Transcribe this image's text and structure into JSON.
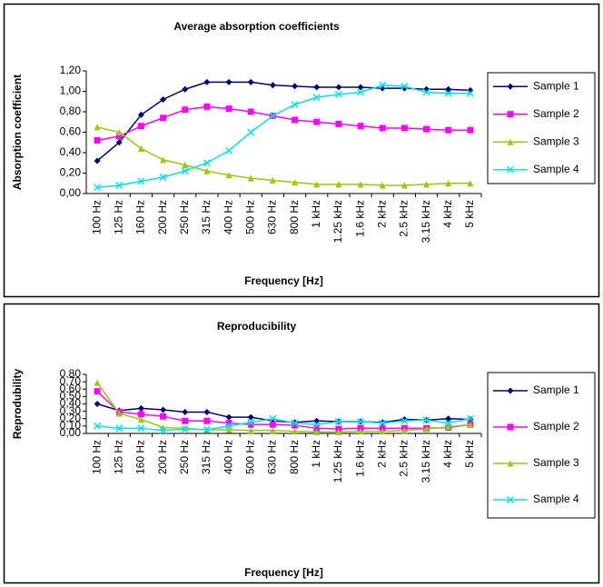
{
  "chart_data": [
    {
      "type": "line",
      "title": "Average absorption coefficients",
      "x_label": "Frequency [Hz]",
      "y_label": "Absorption coefficient",
      "categories": [
        "100 Hz",
        "125 Hz",
        "160 Hz",
        "200 Hz",
        "250 Hz",
        "315 Hz",
        "400 Hz",
        "500 Hz",
        "630 Hz",
        "800 Hz",
        "1 kHz",
        "1.25 kHz",
        "1.6 kHz",
        "2 kHz",
        "2.5 kHz",
        "3.15 kHz",
        "4 kHz",
        "5 kHz"
      ],
      "series": [
        {
          "name": "Sample 1",
          "color": "#000080",
          "marker": "diamond",
          "values": [
            0.32,
            0.5,
            0.77,
            0.92,
            1.02,
            1.09,
            1.09,
            1.09,
            1.06,
            1.05,
            1.04,
            1.04,
            1.04,
            1.03,
            1.03,
            1.02,
            1.02,
            1.01
          ]
        },
        {
          "name": "Sample 2",
          "color": "#ff00ff",
          "marker": "square",
          "values": [
            0.52,
            0.56,
            0.66,
            0.74,
            0.82,
            0.85,
            0.83,
            0.8,
            0.76,
            0.72,
            0.7,
            0.68,
            0.66,
            0.64,
            0.64,
            0.63,
            0.62,
            0.62
          ]
        },
        {
          "name": "Sample 3",
          "color": "#99cc00",
          "marker": "triangle",
          "values": [
            0.65,
            0.6,
            0.44,
            0.33,
            0.28,
            0.22,
            0.18,
            0.15,
            0.13,
            0.11,
            0.09,
            0.09,
            0.09,
            0.08,
            0.08,
            0.09,
            0.1,
            0.1
          ]
        },
        {
          "name": "Sample 4",
          "color": "#00e5ee",
          "marker": "x",
          "values": [
            0.06,
            0.08,
            0.12,
            0.16,
            0.22,
            0.3,
            0.42,
            0.6,
            0.76,
            0.87,
            0.94,
            0.97,
            0.99,
            1.06,
            1.05,
            0.99,
            0.98,
            0.98
          ]
        }
      ],
      "ylim": [
        0,
        1.2
      ],
      "yticks": [
        {
          "value": 0,
          "label": "0,00"
        },
        {
          "value": 0.2,
          "label": "0,20"
        },
        {
          "value": 0.4,
          "label": "0,40"
        },
        {
          "value": 0.6,
          "label": "0,60"
        },
        {
          "value": 0.8,
          "label": "0,80"
        },
        {
          "value": 1.0,
          "label": "1,00"
        },
        {
          "value": 1.2,
          "label": "1,20"
        }
      ],
      "grid": false,
      "legend": "right"
    },
    {
      "type": "line",
      "title": "Reproducibility",
      "x_label": "Frequency [Hz]",
      "y_label": "Reprodubility",
      "categories": [
        "100 Hz",
        "125 Hz",
        "160 Hz",
        "200 Hz",
        "250 Hz",
        "315 Hz",
        "400 Hz",
        "500 Hz",
        "630 Hz",
        "800 Hz",
        "1 kHz",
        "1.25 kHz",
        "1.6 kHz",
        "2 kHz",
        "2.5 kHz",
        "3.15 kHz",
        "4 kHz",
        "5 kHz"
      ],
      "series": [
        {
          "name": "Sample 1",
          "color": "#000080",
          "marker": "diamond",
          "values": [
            0.4,
            0.31,
            0.34,
            0.32,
            0.29,
            0.29,
            0.22,
            0.22,
            0.17,
            0.15,
            0.17,
            0.16,
            0.16,
            0.15,
            0.19,
            0.18,
            0.2,
            0.19
          ]
        },
        {
          "name": "Sample 2",
          "color": "#ff00ff",
          "marker": "square",
          "values": [
            0.57,
            0.29,
            0.26,
            0.23,
            0.17,
            0.17,
            0.14,
            0.12,
            0.12,
            0.11,
            0.07,
            0.06,
            0.07,
            0.07,
            0.07,
            0.07,
            0.08,
            0.12
          ]
        },
        {
          "name": "Sample 3",
          "color": "#99cc00",
          "marker": "triangle",
          "values": [
            0.69,
            0.27,
            0.19,
            0.08,
            0.07,
            0.05,
            0.05,
            0.04,
            0.04,
            0.03,
            0.02,
            0.02,
            0.03,
            0.03,
            0.04,
            0.06,
            0.09,
            0.12
          ]
        },
        {
          "name": "Sample 4",
          "color": "#00e5ee",
          "marker": "x",
          "values": [
            0.1,
            0.07,
            0.07,
            0.04,
            0.06,
            0.05,
            0.1,
            0.15,
            0.2,
            0.14,
            0.12,
            0.16,
            0.16,
            0.14,
            0.17,
            0.18,
            0.14,
            0.2
          ]
        }
      ],
      "ylim": [
        0,
        0.8
      ],
      "yticks": [
        {
          "value": 0,
          "label": "0,00"
        },
        {
          "value": 0.1,
          "label": "0,10"
        },
        {
          "value": 0.2,
          "label": "0,20"
        },
        {
          "value": 0.3,
          "label": "0,30"
        },
        {
          "value": 0.4,
          "label": "0,40"
        },
        {
          "value": 0.5,
          "label": "0,50"
        },
        {
          "value": 0.6,
          "label": "0,60"
        },
        {
          "value": 0.7,
          "label": "0,70"
        },
        {
          "value": 0.8,
          "label": "0,80"
        }
      ],
      "grid": false,
      "legend": "right"
    }
  ]
}
